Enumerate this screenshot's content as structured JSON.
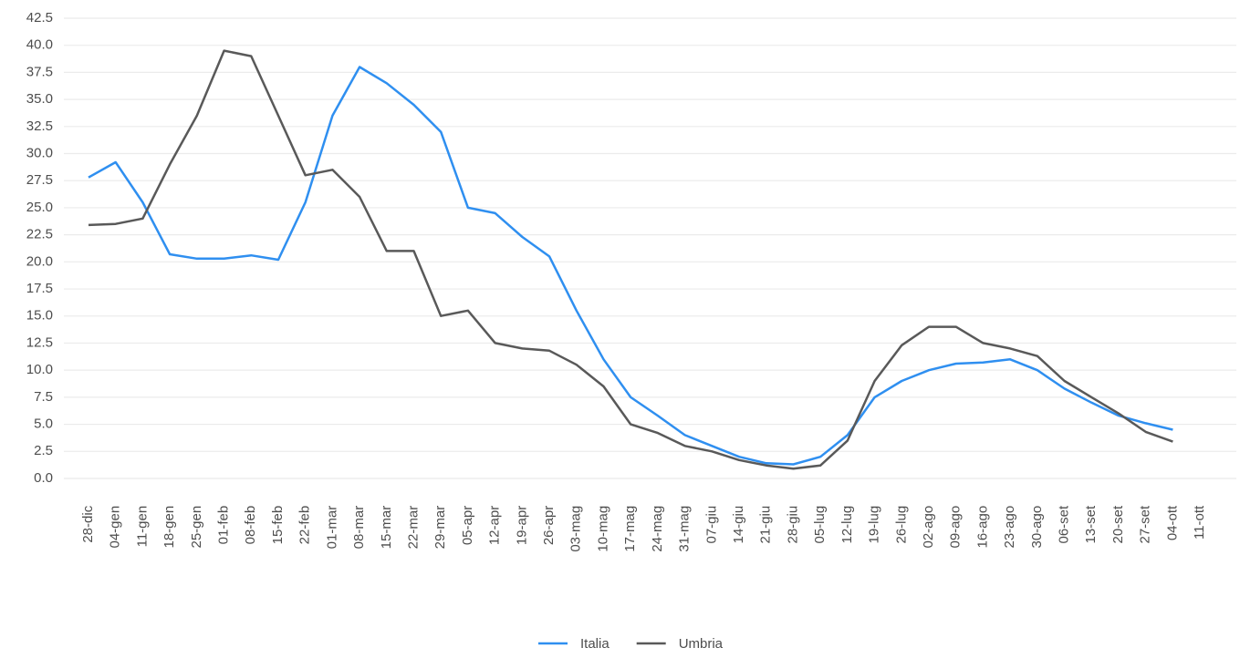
{
  "chart_data": {
    "type": "line",
    "categories": [
      "28-dic",
      "04-gen",
      "11-gen",
      "18-gen",
      "25-gen",
      "01-feb",
      "08-feb",
      "15-feb",
      "22-feb",
      "01-mar",
      "08-mar",
      "15-mar",
      "22-mar",
      "29-mar",
      "05-apr",
      "12-apr",
      "19-apr",
      "26-apr",
      "03-mag",
      "10-mag",
      "17-mag",
      "24-mag",
      "31-mag",
      "07-giu",
      "14-giu",
      "21-giu",
      "28-giu",
      "05-lug",
      "12-lug",
      "19-lug",
      "26-lug",
      "02-ago",
      "09-ago",
      "16-ago",
      "23-ago",
      "30-ago",
      "06-set",
      "13-set",
      "20-set",
      "27-set",
      "04-ott",
      "11-ott"
    ],
    "series": [
      {
        "name": "Italia",
        "color": "#2f8ff0",
        "values": [
          27.8,
          29.2,
          25.5,
          20.7,
          20.3,
          20.3,
          20.6,
          20.2,
          25.5,
          33.5,
          38.0,
          36.5,
          34.5,
          32.0,
          25.0,
          24.5,
          22.3,
          20.5,
          15.5,
          11.0,
          7.5,
          5.8,
          4.0,
          3.0,
          2.0,
          1.4,
          1.3,
          2.0,
          4.0,
          7.5,
          9.0,
          10.0,
          10.6,
          10.7,
          11.0,
          10.0,
          8.3,
          7.0,
          5.8,
          5.1,
          4.5,
          null
        ]
      },
      {
        "name": "Umbria",
        "color": "#595959",
        "values": [
          23.4,
          23.5,
          24.0,
          29.0,
          33.5,
          39.5,
          39.0,
          33.5,
          28.0,
          28.5,
          26.0,
          21.0,
          21.0,
          15.0,
          15.5,
          12.5,
          12.0,
          11.8,
          10.5,
          8.5,
          5.0,
          4.2,
          3.0,
          2.5,
          1.7,
          1.2,
          0.9,
          1.2,
          3.5,
          9.0,
          12.3,
          14.0,
          14.0,
          12.5,
          12.0,
          11.3,
          9.0,
          7.5,
          6.0,
          4.3,
          3.4,
          null
        ]
      }
    ],
    "ylim": [
      -1.5,
      43.5
    ],
    "yticks": [
      {
        "value": 0,
        "label": "0.0"
      },
      2.5,
      {
        "value": 5,
        "label": "5.0"
      },
      7.5,
      {
        "value": 10,
        "label": "10.0"
      },
      12.5,
      {
        "value": 15,
        "label": "15.0"
      },
      17.5,
      {
        "value": 20,
        "label": "20.0"
      },
      22.5,
      {
        "value": 25,
        "label": "25.0"
      },
      27.5,
      {
        "value": 30,
        "label": "30.0"
      },
      32.5,
      {
        "value": 35,
        "label": "35.0"
      },
      37.5,
      {
        "value": 40,
        "label": "40.0"
      },
      42.5
    ],
    "grid": true
  }
}
